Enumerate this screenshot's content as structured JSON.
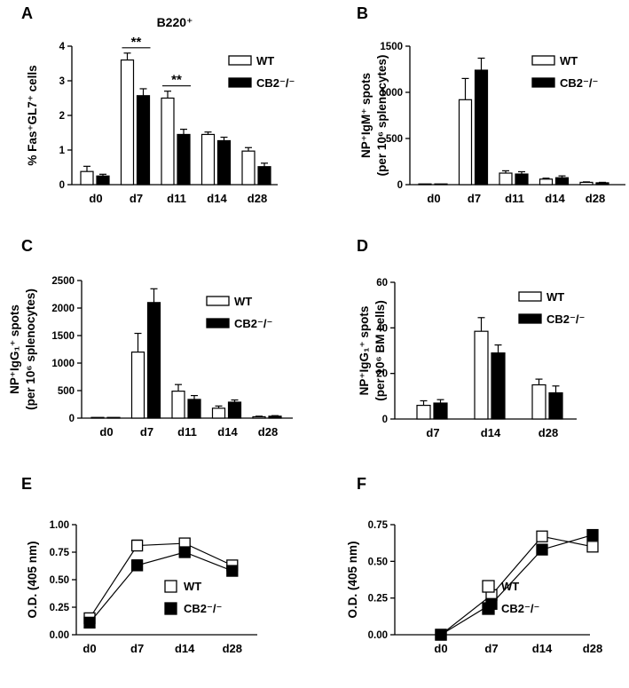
{
  "chart_data": [
    {
      "panel_label": "A",
      "type": "bar",
      "title": "B220⁺",
      "ylabel": "% Fas⁺GL7⁺ cells",
      "ylim": [
        0,
        4
      ],
      "yticks": [
        0,
        1,
        2,
        3,
        4
      ],
      "categories": [
        "d0",
        "d7",
        "d11",
        "d14",
        "d28"
      ],
      "series": [
        {
          "name": "WT",
          "fill": "#ffffff",
          "values": [
            0.38,
            3.6,
            2.5,
            1.45,
            0.97
          ],
          "errors": [
            0.15,
            0.2,
            0.2,
            0.07,
            0.1
          ]
        },
        {
          "name": "CB2⁻/⁻",
          "fill": "#000000",
          "values": [
            0.25,
            2.57,
            1.45,
            1.27,
            0.52
          ],
          "errors": [
            0.05,
            0.2,
            0.15,
            0.1,
            0.1
          ]
        }
      ],
      "annotations": [
        {
          "text": "**",
          "category": "d7"
        },
        {
          "text": "**",
          "category": "d11"
        }
      ]
    },
    {
      "panel_label": "B",
      "type": "bar",
      "ylabel": "NP⁺IgM⁺ spots",
      "ylabel2": "(per 10⁶ splenocytes)",
      "ylim": [
        0,
        1500
      ],
      "yticks": [
        0,
        500,
        1000,
        1500
      ],
      "categories": [
        "d0",
        "d7",
        "d11",
        "d14",
        "d28"
      ],
      "series": [
        {
          "name": "WT",
          "fill": "#ffffff",
          "values": [
            0,
            920,
            125,
            60,
            25
          ],
          "errors": [
            0,
            230,
            25,
            10,
            5
          ]
        },
        {
          "name": "CB2⁻/⁻",
          "fill": "#000000",
          "values": [
            0,
            1240,
            115,
            75,
            20
          ],
          "errors": [
            0,
            130,
            25,
            20,
            5
          ]
        }
      ]
    },
    {
      "panel_label": "C",
      "type": "bar",
      "ylabel": "NP⁺IgG₁⁺ spots",
      "ylabel2": "(per 10⁶ splenocytes)",
      "ylim": [
        0,
        2500
      ],
      "yticks": [
        0,
        500,
        1000,
        1500,
        2000,
        2500
      ],
      "categories": [
        "d0",
        "d7",
        "d11",
        "d14",
        "d28"
      ],
      "series": [
        {
          "name": "WT",
          "fill": "#ffffff",
          "values": [
            0,
            1200,
            490,
            180,
            25
          ],
          "errors": [
            0,
            340,
            120,
            40,
            10
          ]
        },
        {
          "name": "CB2⁻/⁻",
          "fill": "#000000",
          "values": [
            0,
            2100,
            340,
            290,
            35
          ],
          "errors": [
            0,
            250,
            70,
            40,
            10
          ]
        }
      ]
    },
    {
      "panel_label": "D",
      "type": "bar",
      "ylabel": "NP⁺IgG₁⁺ spots",
      "ylabel2": "(per 10⁶ BM cells)",
      "ylim": [
        0,
        60
      ],
      "yticks": [
        0,
        20,
        40,
        60
      ],
      "categories": [
        "d7",
        "d14",
        "d28"
      ],
      "series": [
        {
          "name": "WT",
          "fill": "#ffffff",
          "values": [
            6,
            38.5,
            15
          ],
          "errors": [
            2,
            6,
            2.5
          ]
        },
        {
          "name": "CB2⁻/⁻",
          "fill": "#000000",
          "values": [
            7,
            29,
            11.5
          ],
          "errors": [
            1.5,
            3.5,
            3
          ]
        }
      ]
    },
    {
      "panel_label": "E",
      "type": "line",
      "ylabel": "O.D. (405 nm)",
      "ylim": [
        0,
        1
      ],
      "yticks": [
        "0.00",
        "0.25",
        "0.50",
        "0.75",
        "1.00"
      ],
      "categories": [
        "d0",
        "d7",
        "d14",
        "d28"
      ],
      "series": [
        {
          "name": "WT",
          "marker": "open-square",
          "values": [
            0.15,
            0.81,
            0.83,
            0.63
          ],
          "errors": [
            0.03,
            0.05,
            0.04,
            0.04
          ]
        },
        {
          "name": "CB2⁻/⁻",
          "marker": "filled-square",
          "values": [
            0.11,
            0.63,
            0.75,
            0.58
          ],
          "errors": [
            0.02,
            0.05,
            0.04,
            0.03
          ]
        }
      ]
    },
    {
      "panel_label": "F",
      "type": "line",
      "ylabel": "O.D. (405 nm)",
      "ylim": [
        0,
        0.75
      ],
      "yticks": [
        "0.00",
        "0.25",
        "0.50",
        "0.75"
      ],
      "categories": [
        "d0",
        "d7",
        "d14",
        "d28"
      ],
      "series": [
        {
          "name": "WT",
          "marker": "open-square",
          "values": [
            0.0,
            0.27,
            0.67,
            0.6
          ],
          "errors": [
            0.0,
            0.03,
            0.02,
            0.03
          ]
        },
        {
          "name": "CB2⁻/⁻",
          "marker": "filled-square",
          "values": [
            0.0,
            0.21,
            0.58,
            0.68
          ],
          "errors": [
            0.0,
            0.02,
            0.02,
            0.02
          ]
        }
      ]
    }
  ]
}
